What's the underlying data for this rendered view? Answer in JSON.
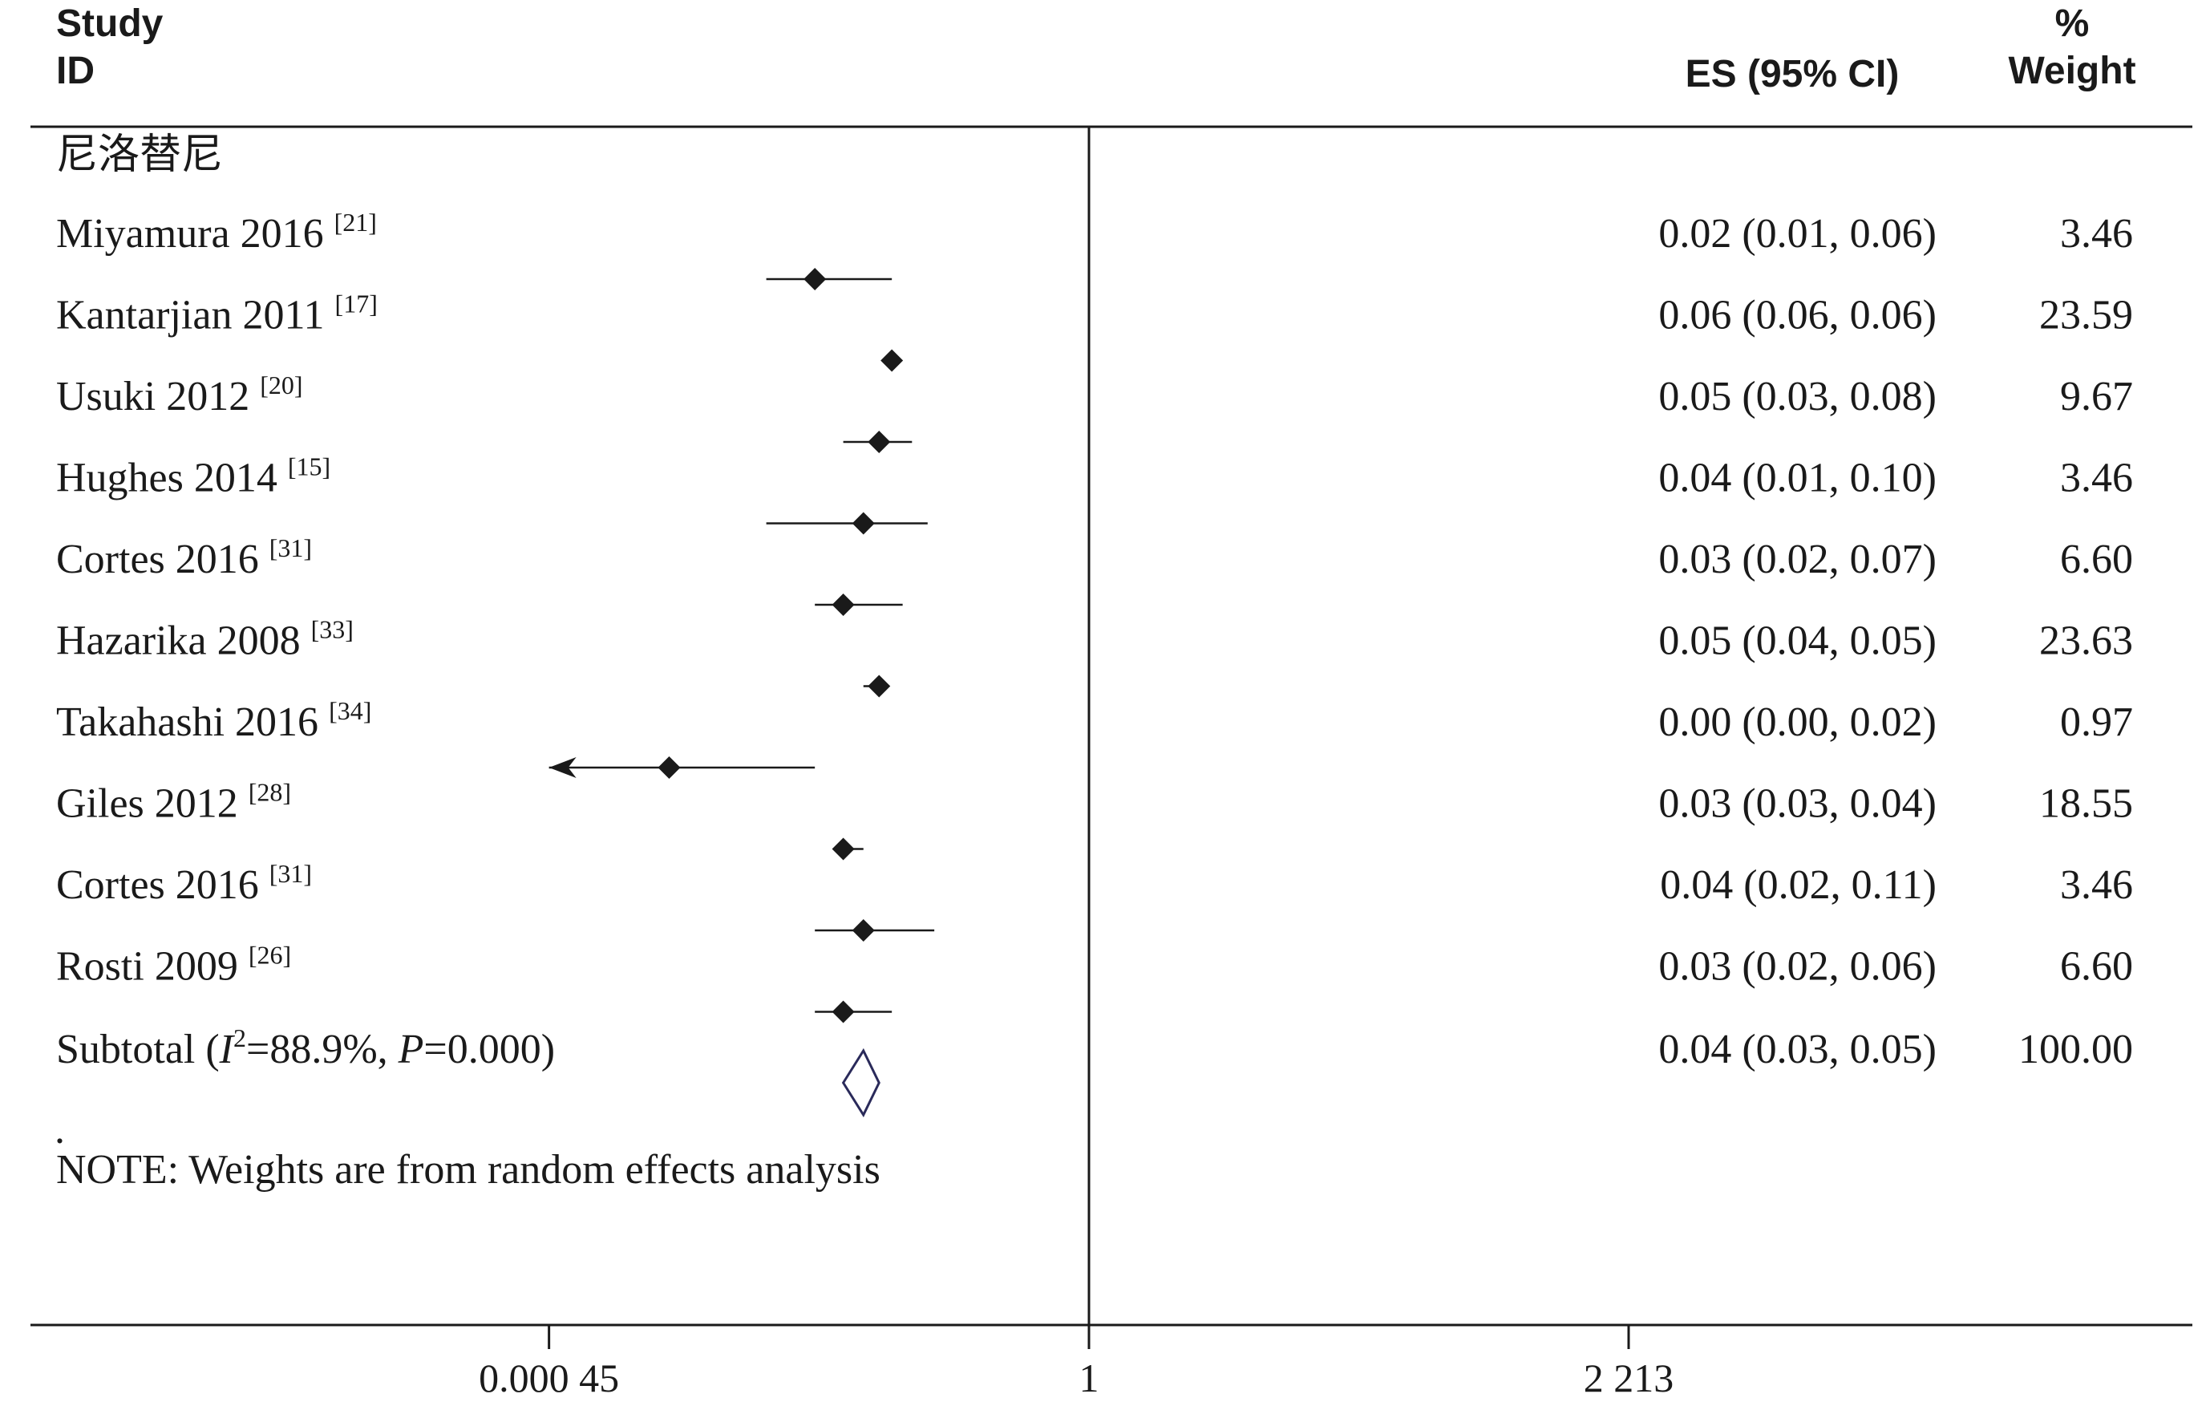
{
  "chart_data": {
    "type": "forest",
    "columns": {
      "study_line1": "Study",
      "study_line2": "ID",
      "es_label": "ES (95% CI)",
      "weight_line1": "%",
      "weight_line2": "Weight"
    },
    "group_label": "尼洛替尼",
    "x_scale": "log",
    "x_range": [
      0.00045,
      2213
    ],
    "x_ticks": [
      {
        "value": 0.00045,
        "label": "0.000 45"
      },
      {
        "value": 1,
        "label": "1"
      },
      {
        "value": 2213,
        "label": "2 213"
      }
    ],
    "studies": [
      {
        "name": "Miyamura 2016",
        "ref": "[21]",
        "es": 0.02,
        "lo": 0.01,
        "hi": 0.06,
        "es_text": "0.02 (0.01, 0.06)",
        "weight": "3.46"
      },
      {
        "name": "Kantarjian 2011",
        "ref": "[17]",
        "es": 0.06,
        "lo": 0.06,
        "hi": 0.06,
        "es_text": "0.06 (0.06, 0.06)",
        "weight": "23.59"
      },
      {
        "name": "Usuki 2012",
        "ref": "[20]",
        "es": 0.05,
        "lo": 0.03,
        "hi": 0.08,
        "es_text": "0.05 (0.03, 0.08)",
        "weight": "9.67"
      },
      {
        "name": "Hughes 2014",
        "ref": "[15]",
        "es": 0.04,
        "lo": 0.01,
        "hi": 0.1,
        "es_text": "0.04 (0.01, 0.10)",
        "weight": "3.46"
      },
      {
        "name": "Cortes 2016",
        "ref": "[31]",
        "es": 0.03,
        "lo": 0.02,
        "hi": 0.07,
        "es_text": "0.03 (0.02, 0.07)",
        "weight": "6.60"
      },
      {
        "name": "Hazarika 2008",
        "ref": "[33]",
        "es": 0.05,
        "lo": 0.04,
        "hi": 0.05,
        "es_text": "0.05 (0.04, 0.05)",
        "weight": "23.63"
      },
      {
        "name": "Takahashi 2016",
        "ref": "[34]",
        "es": 0.0025,
        "lo": 0.00045,
        "hi": 0.02,
        "es_text": "0.00 (0.00, 0.02)",
        "weight": "0.97",
        "arrow_left": true
      },
      {
        "name": "Giles 2012",
        "ref": "[28]",
        "es": 0.03,
        "lo": 0.03,
        "hi": 0.04,
        "es_text": "0.03 (0.03, 0.04)",
        "weight": "18.55"
      },
      {
        "name": "Cortes 2016",
        "ref": "[31]",
        "es": 0.04,
        "lo": 0.02,
        "hi": 0.11,
        "es_text": "0.04 (0.02, 0.11)",
        "weight": "3.46"
      },
      {
        "name": "Rosti 2009",
        "ref": "[26]",
        "es": 0.03,
        "lo": 0.02,
        "hi": 0.06,
        "es_text": "0.03 (0.02, 0.06)",
        "weight": "6.60"
      }
    ],
    "subtotal": {
      "label_prefix": "Subtotal  (",
      "i_symbol": "I",
      "i_sup": "2",
      "i_value": "=88.9%, ",
      "p_symbol": "P",
      "p_value": "=0.000)",
      "es": 0.04,
      "lo": 0.03,
      "hi": 0.05,
      "es_text": "0.04 (0.03, 0.05)",
      "weight": "100.00"
    },
    "dot_mark": ".",
    "note": "NOTE: Weights are from random effects analysis",
    "colors": {
      "ink": "#1a1a1a",
      "subtotal_diamond": "#2a2a5a"
    }
  }
}
